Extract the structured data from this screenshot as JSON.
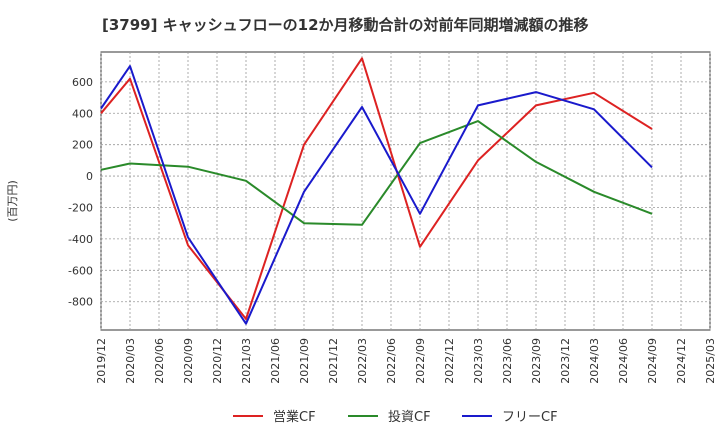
{
  "chart_data": {
    "type": "line",
    "title": "[3799]  キャッシュフローの12か月移動合計の対前年同期増減額の推移",
    "ylabel": "(百万円)",
    "xlabel": "",
    "ylim": [
      -980,
      790
    ],
    "yticks": [
      -800,
      -600,
      -400,
      -200,
      0,
      200,
      400,
      600
    ],
    "grid": true,
    "legend_position": "bottom",
    "x": [
      "2019/12",
      "2020/03",
      "2020/06",
      "2020/09",
      "2020/12",
      "2021/03",
      "2021/06",
      "2021/09",
      "2021/12",
      "2022/03",
      "2022/06",
      "2022/09",
      "2022/12",
      "2023/03",
      "2023/06",
      "2023/09",
      "2023/12",
      "2024/03",
      "2024/06",
      "2024/09",
      "2024/12",
      "2025/03"
    ],
    "series": [
      {
        "name": "営業CF",
        "color": "#dd2222",
        "points": [
          [
            "2019/12",
            400
          ],
          [
            "2020/03",
            620
          ],
          [
            "2020/09",
            -440
          ],
          [
            "2021/03",
            -910
          ],
          [
            "2021/09",
            200
          ],
          [
            "2022/03",
            750
          ],
          [
            "2022/09",
            -450
          ],
          [
            "2023/03",
            100
          ],
          [
            "2023/09",
            450
          ],
          [
            "2024/03",
            530
          ],
          [
            "2024/09",
            300
          ]
        ]
      },
      {
        "name": "投資CF",
        "color": "#2a8a2a",
        "points": [
          [
            "2019/12",
            40
          ],
          [
            "2020/03",
            80
          ],
          [
            "2020/09",
            60
          ],
          [
            "2021/03",
            -30
          ],
          [
            "2021/09",
            -300
          ],
          [
            "2022/03",
            -310
          ],
          [
            "2022/09",
            210
          ],
          [
            "2023/03",
            350
          ],
          [
            "2023/09",
            90
          ],
          [
            "2024/03",
            -100
          ],
          [
            "2024/09",
            -240
          ]
        ]
      },
      {
        "name": "フリーCF",
        "color": "#1a1acc",
        "points": [
          [
            "2019/12",
            430
          ],
          [
            "2020/03",
            700
          ],
          [
            "2020/09",
            -390
          ],
          [
            "2021/03",
            -940
          ],
          [
            "2021/09",
            -100
          ],
          [
            "2022/03",
            440
          ],
          [
            "2022/09",
            -240
          ],
          [
            "2023/03",
            450
          ],
          [
            "2023/09",
            535
          ],
          [
            "2024/03",
            425
          ],
          [
            "2024/09",
            55
          ]
        ]
      }
    ]
  }
}
